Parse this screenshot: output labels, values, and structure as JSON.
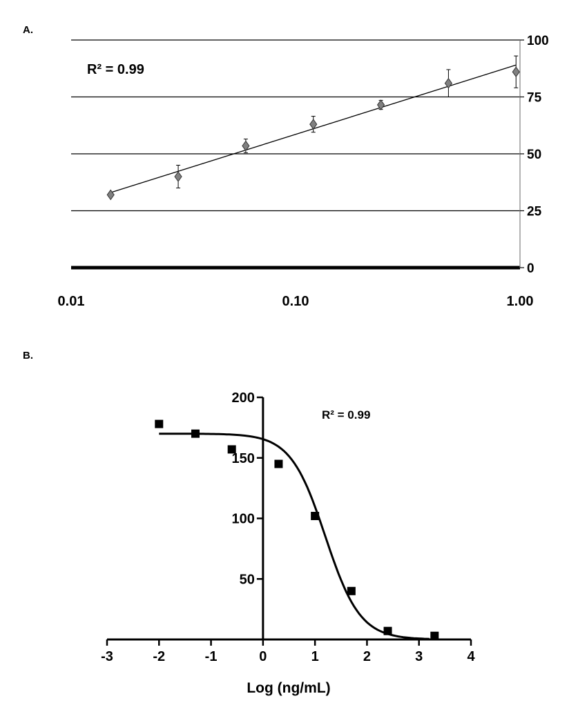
{
  "chart_data": [
    {
      "panel_label": "A.",
      "type": "scatter",
      "x_scale": "log",
      "xlim": [
        0.01,
        1.0
      ],
      "ylim": [
        0,
        100
      ],
      "x_ticks": [
        0.01,
        0.1,
        1.0
      ],
      "x_tick_labels": [
        "0.01",
        "0.10",
        "1.00"
      ],
      "y_ticks": [
        0,
        25,
        50,
        75,
        100
      ],
      "y_tick_labels": [
        "0",
        "25",
        "50",
        "75",
        "100"
      ],
      "y_axis_side": "right",
      "grid": "horizontal",
      "annotation": "R² = 0.99",
      "marker_color": "#808080",
      "series": [
        {
          "x": [
            0.015,
            0.03,
            0.06,
            0.12,
            0.24,
            0.48,
            0.96
          ],
          "y": [
            32,
            40,
            53.5,
            63,
            71.5,
            81,
            86
          ],
          "error": [
            0,
            5,
            3,
            3.5,
            2,
            6,
            7
          ]
        }
      ],
      "fit_line": {
        "x": [
          0.015,
          0.96
        ],
        "y": [
          33,
          89
        ]
      }
    },
    {
      "panel_label": "B.",
      "type": "scatter",
      "xlabel": "Log (ng/mL)",
      "xlim": [
        -3,
        4
      ],
      "ylim": [
        0,
        200
      ],
      "x_ticks": [
        -3,
        -2,
        -1,
        0,
        1,
        2,
        3,
        4
      ],
      "x_tick_labels": [
        "-3",
        "-2",
        "-1",
        "0",
        "1",
        "2",
        "3",
        "4"
      ],
      "y_ticks": [
        50,
        100,
        150,
        200
      ],
      "y_tick_labels": [
        "50",
        "100",
        "150",
        "200"
      ],
      "annotation": "R² = 0.99",
      "series": [
        {
          "x": [
            -2.0,
            -1.3,
            -0.6,
            0.3,
            1.0,
            1.7,
            2.4,
            3.3
          ],
          "y": [
            178,
            170,
            157,
            145,
            102,
            40,
            7,
            3
          ]
        }
      ],
      "fit_curve": {
        "top": 170,
        "bottom": 0,
        "ec50_log": 1.2,
        "hill": 1.3
      }
    }
  ]
}
